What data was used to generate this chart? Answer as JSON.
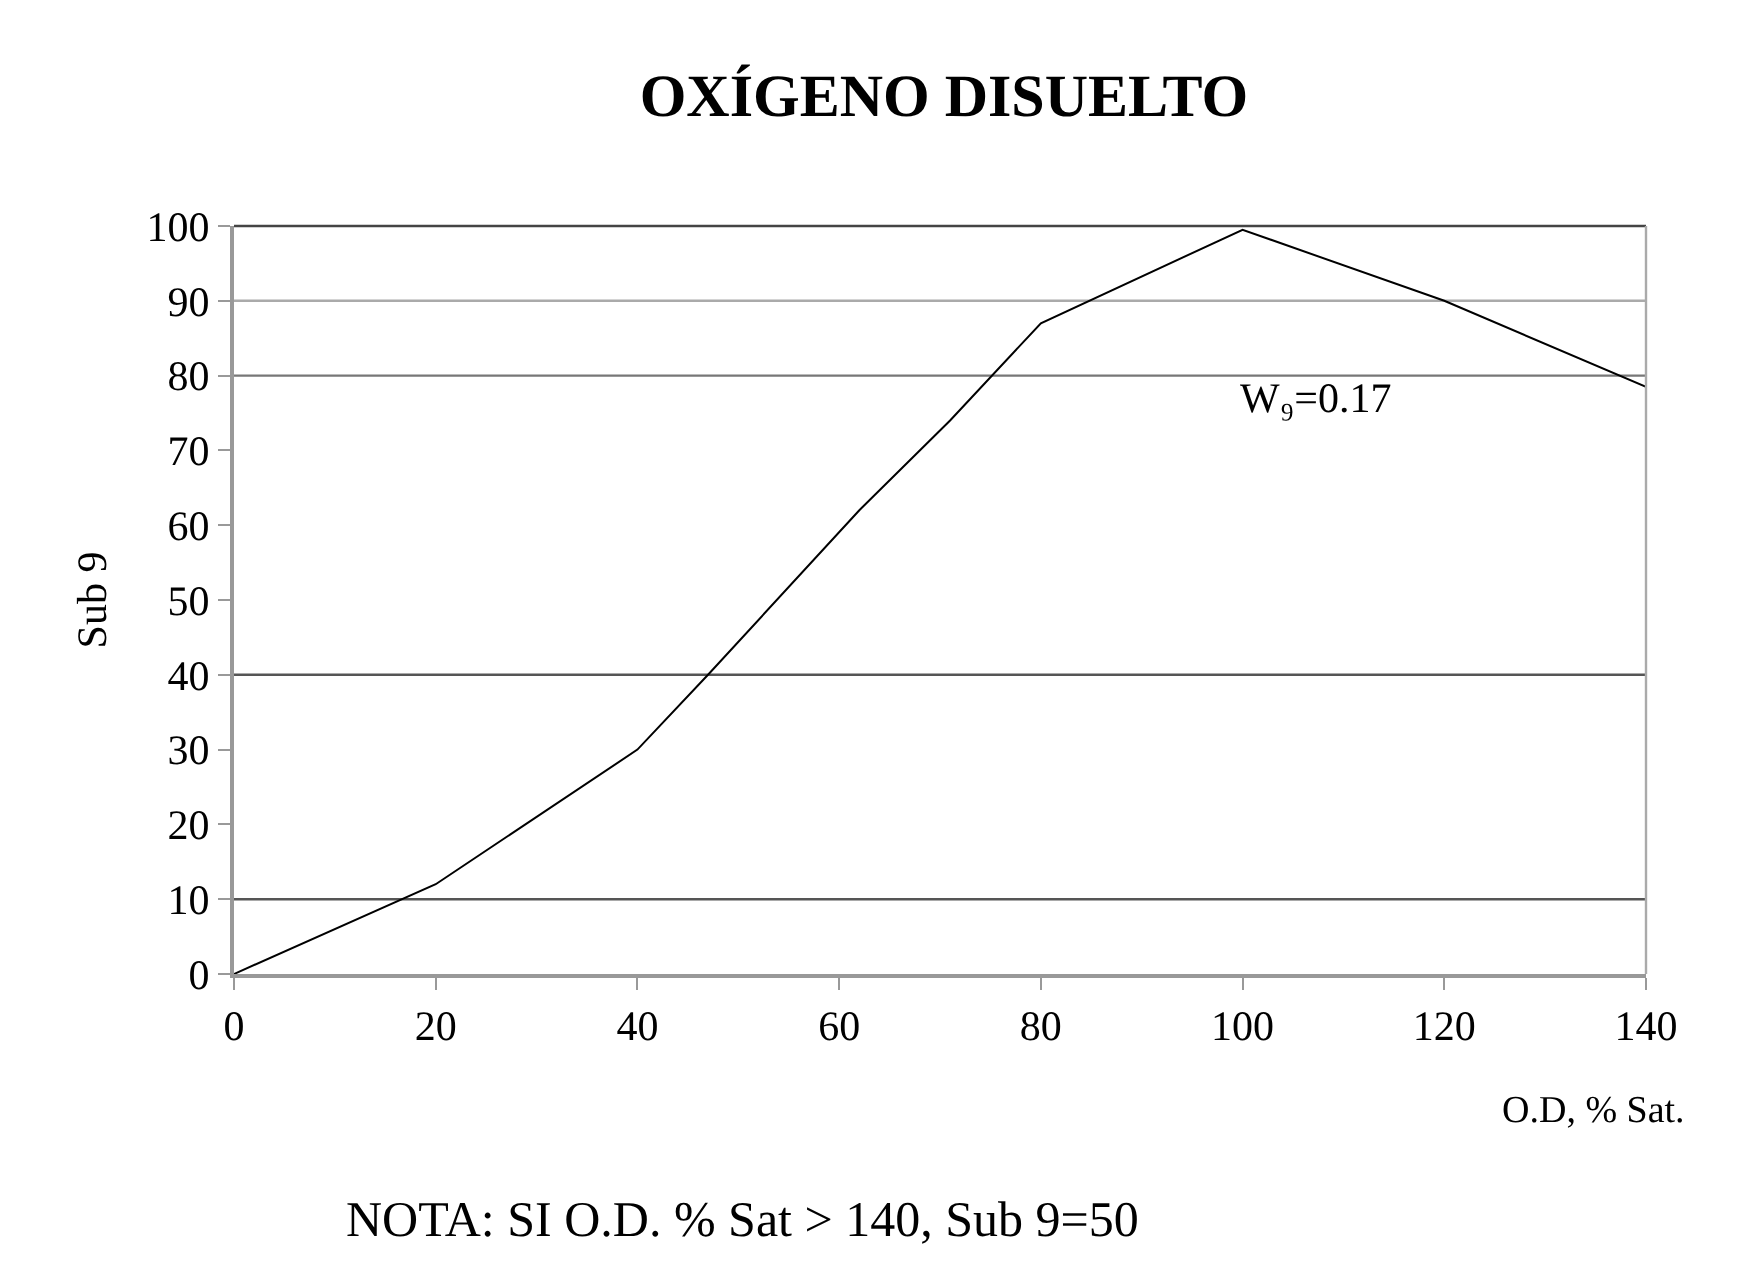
{
  "chart_data": {
    "type": "line",
    "title": "OXÍGENO DISUELTO",
    "xlabel": "O.D, % Sat.",
    "ylabel": "Sub 9",
    "x": [
      0,
      20,
      40,
      47,
      62,
      71,
      80,
      100,
      120,
      140
    ],
    "series": [
      {
        "color": "#000000",
        "values": [
          0,
          12,
          30,
          40,
          62,
          74,
          87,
          99.5,
          90,
          78.5
        ]
      }
    ],
    "xlim": [
      0,
      140
    ],
    "xticks": [
      0,
      20,
      40,
      60,
      80,
      100,
      120,
      140
    ],
    "ylim": [
      0,
      100
    ],
    "yticks": [
      0,
      10,
      20,
      30,
      40,
      50,
      60,
      70,
      80,
      90,
      100
    ],
    "grid": false,
    "marker": "none",
    "line_style": "solid",
    "ref_lines": [
      {
        "axis": "y",
        "value": 10,
        "color": "#555555"
      },
      {
        "axis": "y",
        "value": 40,
        "color": "#555555"
      },
      {
        "axis": "y",
        "value": 80,
        "color": "#777777"
      },
      {
        "axis": "y",
        "value": 90,
        "color": "#aaaaaa"
      }
    ],
    "annotations": [
      "W₉=0.17",
      "NOTA: SI O.D. % Sat > 140, Sub 9=50"
    ]
  }
}
